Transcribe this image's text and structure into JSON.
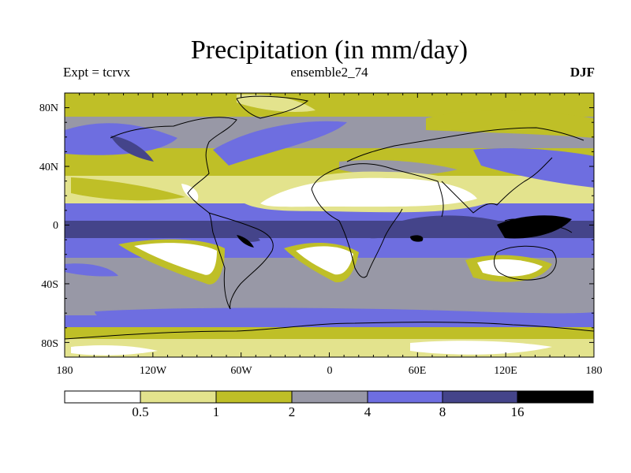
{
  "title": "Precipitation (in mm/day)",
  "subtitle_left": "Expt = tcrvx",
  "subtitle_center": "ensemble2_74",
  "subtitle_right": "DJF",
  "axes": {
    "x_ticks": [
      "180",
      "120W",
      "60W",
      "0",
      "60E",
      "120E",
      "180"
    ],
    "y_ticks": [
      "80N",
      "40N",
      "0",
      "40S",
      "80S"
    ]
  },
  "colorbar": {
    "labels": [
      "0.5",
      "1",
      "2",
      "4",
      "8",
      "16"
    ],
    "colors": [
      "#ffffff",
      "#e3e38d",
      "#bfbf27",
      "#9898a6",
      "#6e6ee0",
      "#44448a",
      "#000000"
    ]
  }
}
